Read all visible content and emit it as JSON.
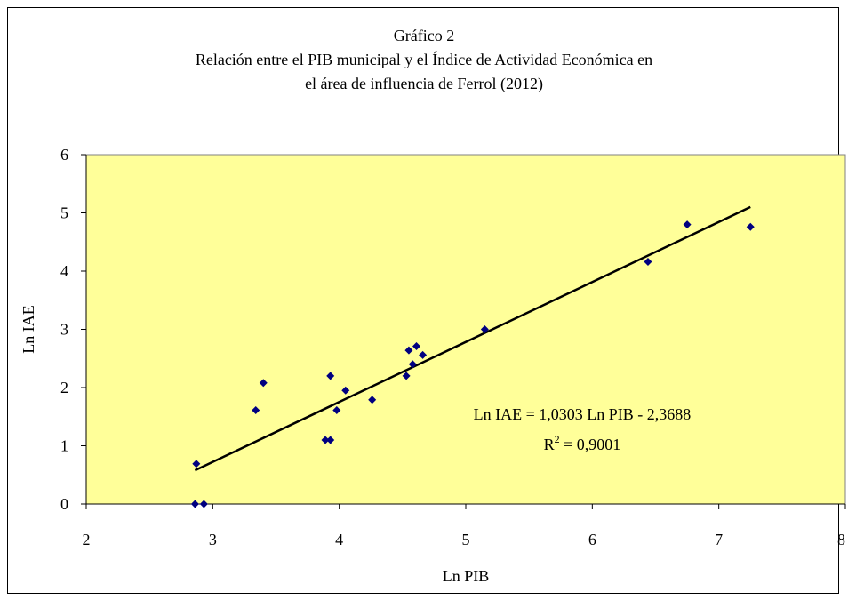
{
  "chart_data": {
    "type": "scatter",
    "title_lines": [
      "Gráfico 2",
      "Relación entre el PIB municipal y el Índice de Actividad Económica en",
      "el área de influencia de Ferrol (2012)"
    ],
    "xlabel": "Ln PIB",
    "ylabel": "Ln IAE",
    "xlim": [
      2,
      8
    ],
    "ylim": [
      0,
      6
    ],
    "x_ticks": [
      "2",
      "3",
      "4",
      "5",
      "6",
      "7",
      "8"
    ],
    "y_ticks": [
      "0",
      "1",
      "2",
      "3",
      "4",
      "5",
      "6"
    ],
    "grid": false,
    "plot_background": "#ffff99",
    "marker_color": "#000080",
    "trendline_color": "#000000",
    "points": [
      {
        "x": 2.86,
        "y": 0.0
      },
      {
        "x": 2.93,
        "y": 0.0
      },
      {
        "x": 2.87,
        "y": 0.69
      },
      {
        "x": 3.34,
        "y": 1.61
      },
      {
        "x": 3.4,
        "y": 2.08
      },
      {
        "x": 3.89,
        "y": 1.1
      },
      {
        "x": 3.93,
        "y": 1.1
      },
      {
        "x": 3.93,
        "y": 2.2
      },
      {
        "x": 3.98,
        "y": 1.61
      },
      {
        "x": 4.05,
        "y": 1.95
      },
      {
        "x": 4.26,
        "y": 1.79
      },
      {
        "x": 4.53,
        "y": 2.2
      },
      {
        "x": 4.55,
        "y": 2.64
      },
      {
        "x": 4.58,
        "y": 2.4
      },
      {
        "x": 4.61,
        "y": 2.71
      },
      {
        "x": 4.66,
        "y": 2.56
      },
      {
        "x": 5.15,
        "y": 3.0
      },
      {
        "x": 6.44,
        "y": 4.16
      },
      {
        "x": 6.75,
        "y": 4.8
      },
      {
        "x": 7.25,
        "y": 4.76
      }
    ],
    "trendline": {
      "slope": 1.0303,
      "intercept": -2.3688,
      "x_start": 2.86,
      "x_end": 7.25
    },
    "equation_text": "Ln IAE = 1,0303 Ln PIB - 2,3688",
    "r2_label": "R",
    "r2_sup": "2",
    "r2_value": " = 0,9001"
  }
}
